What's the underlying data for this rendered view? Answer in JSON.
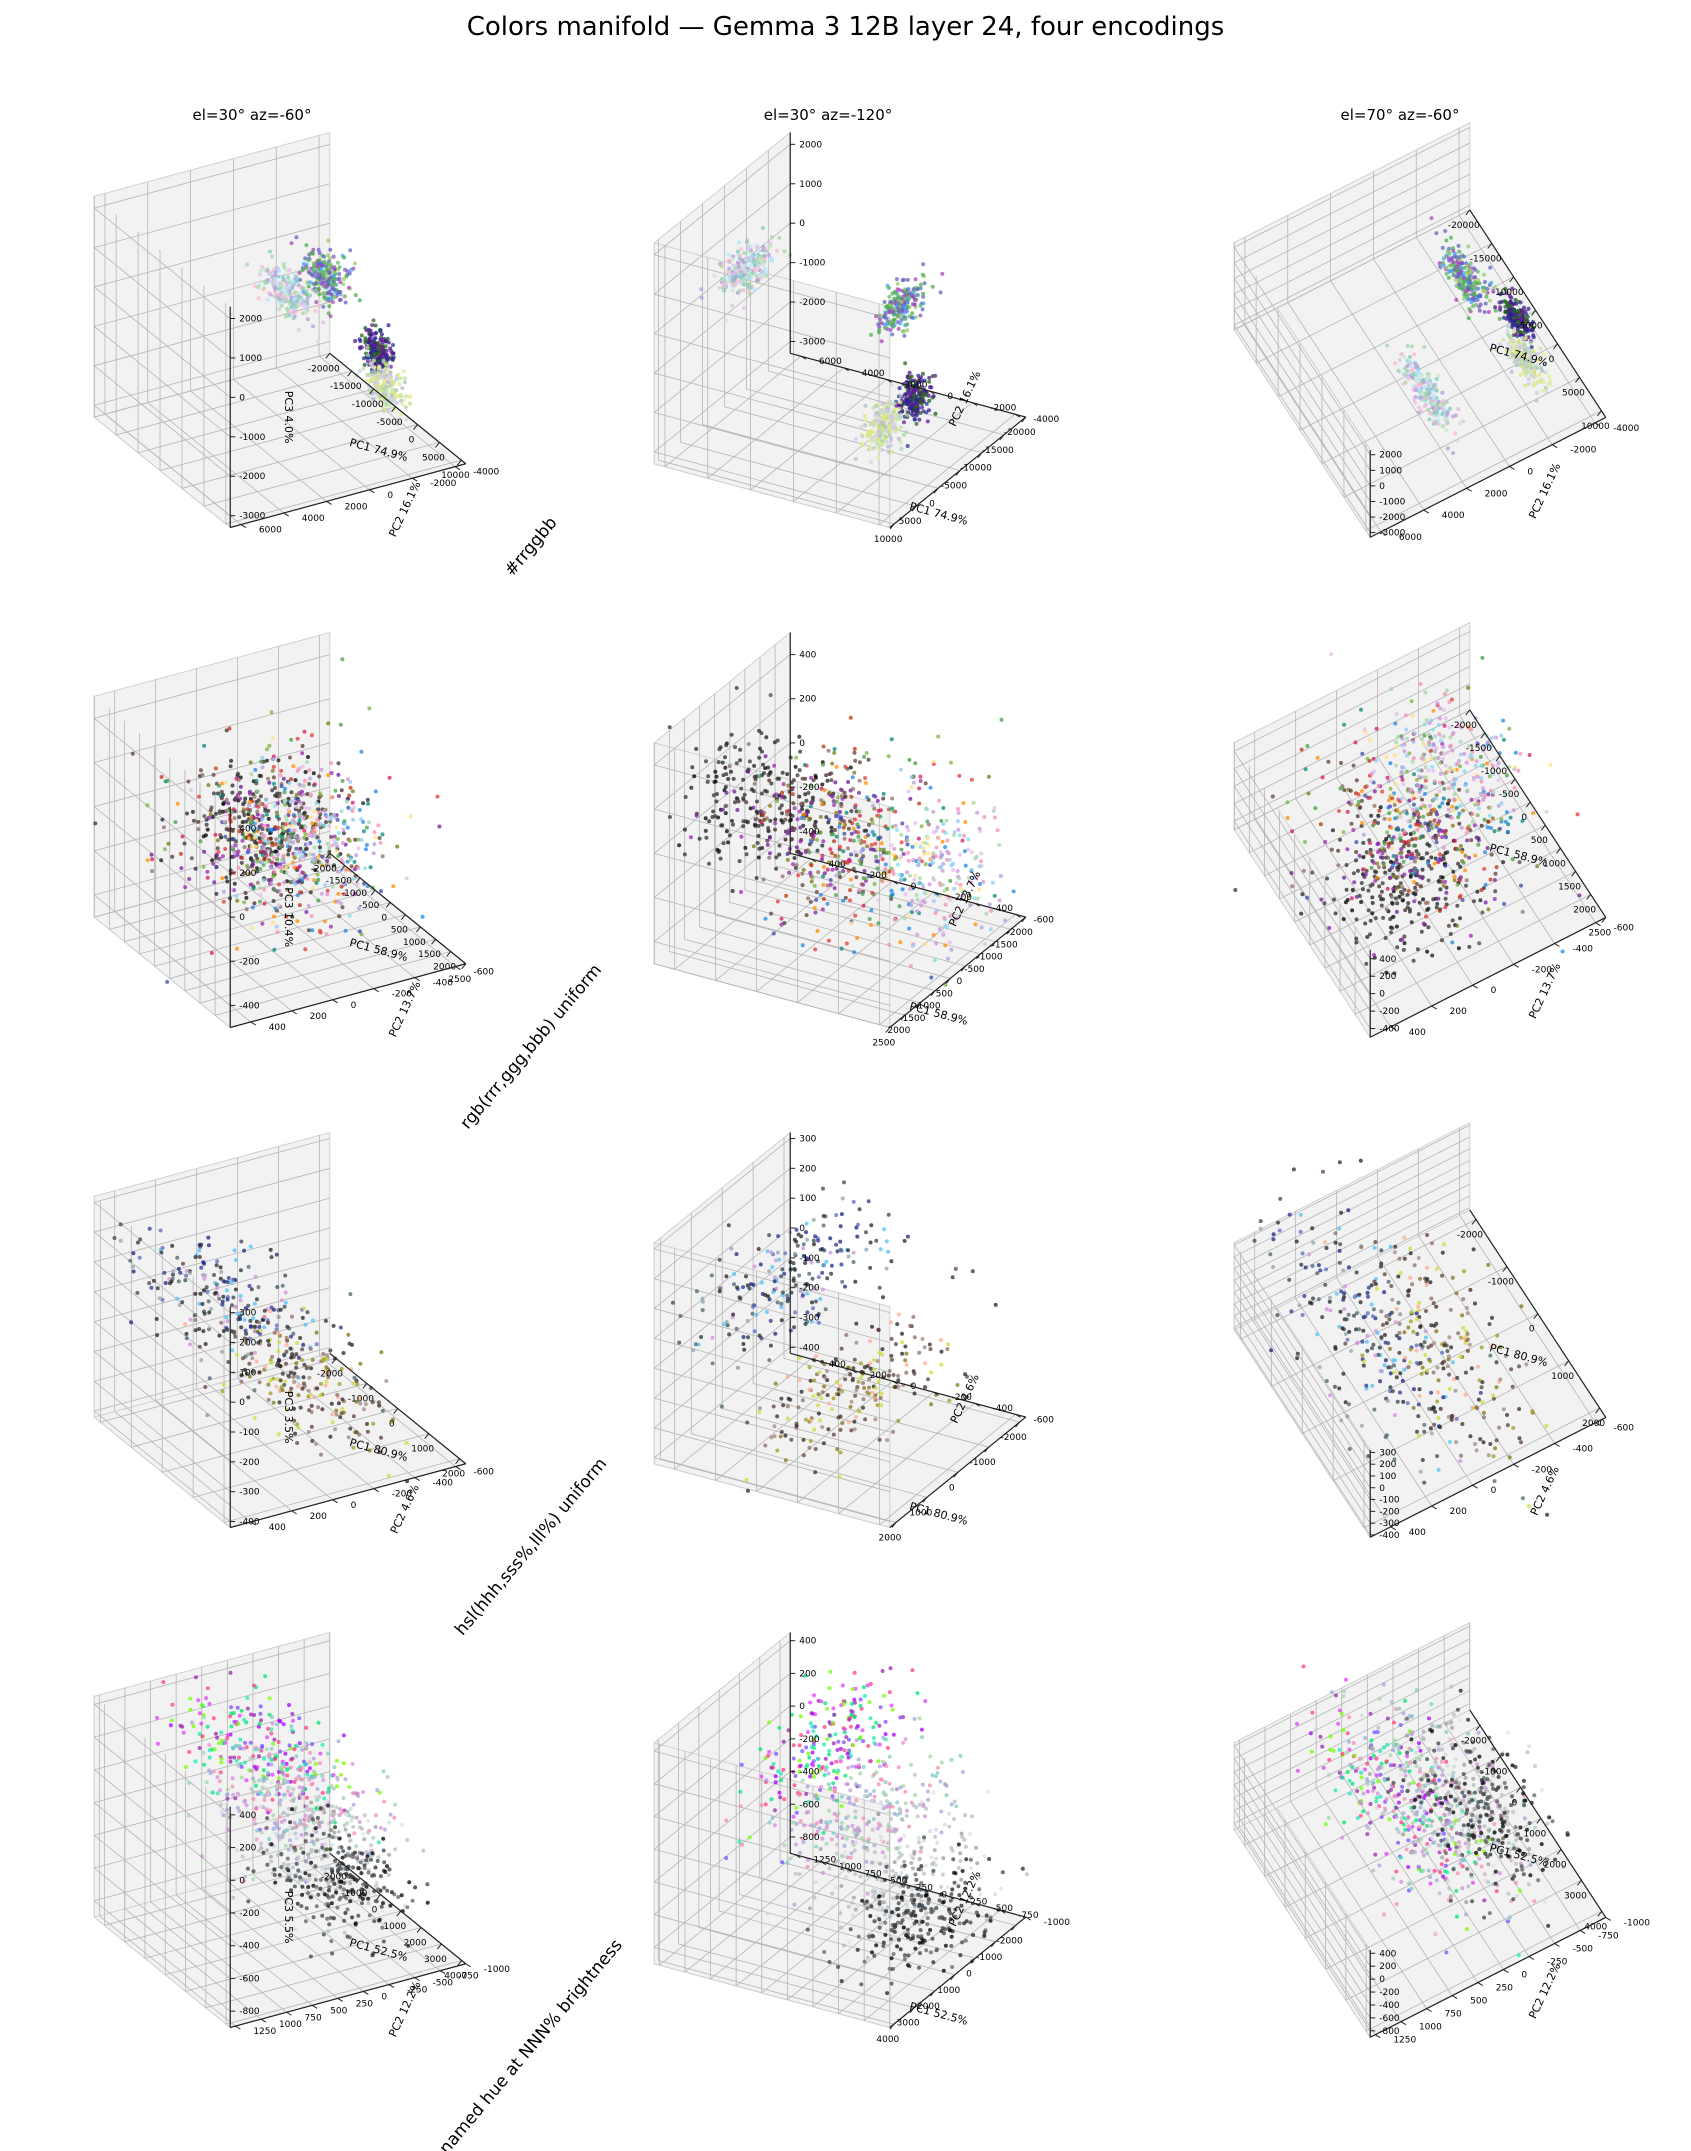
{
  "suptitle": "Colors manifold — Gemma 3 12B layer 24, four encodings",
  "view_titles": [
    "el=30° az=-60°",
    "el=30° az=-120°",
    "el=70° az=-60°"
  ],
  "chart_data": [
    {
      "type": "scatter",
      "row_label": "#rrggbb",
      "x_label": "PC1 74.9%",
      "y_label": "PC2 16.1%",
      "z_label": "PC3 4.0%",
      "x_ticks": [
        -20000,
        -15000,
        -10000,
        -5000,
        0,
        5000,
        10000
      ],
      "y_ticks": [
        -4000,
        -2000,
        0,
        2000,
        4000,
        6000
      ],
      "z_ticks": [
        -3000,
        -2000,
        -1000,
        0,
        1000,
        2000
      ],
      "xlim": [
        -20000,
        11000
      ],
      "ylim": [
        -4500,
        6500
      ],
      "zlim": [
        -3300,
        2300
      ],
      "clusters": [
        {
          "center": [
            7000,
            3000,
            1800
          ],
          "spread": [
            2500,
            300,
            250
          ],
          "elong": [
            1,
            0.3,
            0.4
          ],
          "palette": [
            "#c8e6c9",
            "#b3e5fc",
            "#e1bee7",
            "#a5d6a7",
            "#f8bbd0",
            "#b39ddb",
            "#80cbc4"
          ]
        },
        {
          "center": [
            -6000,
            -1500,
            300
          ],
          "spread": [
            2200,
            250,
            250
          ],
          "elong": [
            1,
            -0.3,
            0.6
          ],
          "palette": [
            "#7e57c2",
            "#66bb6a",
            "#5c6bc0",
            "#9ccc65",
            "#ab47bc",
            "#42a5f5",
            "#4caf50"
          ]
        },
        {
          "center": [
            -2000,
            -3000,
            -1400
          ],
          "spread": [
            1400,
            200,
            250
          ],
          "elong": [
            1,
            0.25,
            0.5
          ],
          "palette": [
            "#311b92",
            "#4a148c",
            "#1b5e20",
            "#33691e",
            "#6a1b9a",
            "#283593"
          ]
        },
        {
          "center": [
            2500,
            -2500,
            -1800
          ],
          "spread": [
            1800,
            250,
            250
          ],
          "elong": [
            1,
            0.2,
            0.6
          ],
          "palette": [
            "#dce775",
            "#c5e1a5",
            "#d1c4e9",
            "#b0bec5",
            "#e6ee9c",
            "#cfd8dc",
            "#a5d6a7"
          ]
        }
      ]
    },
    {
      "type": "scatter",
      "row_label": "rgb(rrr,ggg,bbb) uniform",
      "x_label": "PC1 58.9%",
      "y_label": "PC2 13.7%",
      "z_label": "PC3 10.4%",
      "x_ticks": [
        -2000,
        -1500,
        -1000,
        -500,
        0,
        500,
        1000,
        1500,
        2000,
        2500
      ],
      "y_ticks": [
        -600,
        -400,
        -200,
        0,
        200,
        400
      ],
      "z_ticks": [
        -400,
        -200,
        0,
        200,
        400
      ],
      "xlim": [
        -2000,
        2500
      ],
      "ylim": [
        -650,
        500
      ],
      "zlim": [
        -500,
        500
      ],
      "clusters": [
        {
          "center": [
            1200,
            150,
            180
          ],
          "spread": [
            600,
            180,
            120
          ],
          "elong": [
            0,
            0,
            0
          ],
          "palette": [
            "#000000",
            "#1a1a1a",
            "#2e2e2e",
            "#333333",
            "#3b2f2f",
            "#222831"
          ]
        },
        {
          "center": [
            400,
            0,
            30
          ],
          "spread": [
            800,
            200,
            160
          ],
          "elong": [
            0,
            0,
            0
          ],
          "palette": [
            "#7b1fa2",
            "#8d6e63",
            "#5d4037",
            "#6a1b9a",
            "#4e342e",
            "#9c27b0",
            "#827717",
            "#bf360c"
          ]
        },
        {
          "center": [
            -200,
            -150,
            -120
          ],
          "spread": [
            800,
            200,
            180
          ],
          "elong": [
            0,
            0,
            0
          ],
          "palette": [
            "#3949ab",
            "#43a047",
            "#ff8f00",
            "#00897b",
            "#e53935",
            "#1e88e5",
            "#7cb342",
            "#d81b60"
          ]
        },
        {
          "center": [
            -900,
            -350,
            -250
          ],
          "spread": [
            600,
            150,
            160
          ],
          "elong": [
            0,
            0,
            0
          ],
          "palette": [
            "#f48fb1",
            "#ce93d8",
            "#a5d6a7",
            "#90caf9",
            "#ffe082",
            "#b39ddb",
            "#80deea",
            "#e1bee7"
          ]
        }
      ]
    },
    {
      "type": "scatter",
      "row_label": "hsl(hhh,sss%,lll%) uniform",
      "x_label": "PC1 80.9%",
      "y_label": "PC2 4.6%",
      "z_label": "PC3 3.5%",
      "x_ticks": [
        -2000,
        -1000,
        0,
        1000,
        2000
      ],
      "y_ticks": [
        -600,
        -400,
        -200,
        0,
        200,
        400
      ],
      "z_ticks": [
        -400,
        -300,
        -200,
        -100,
        0,
        100,
        200,
        300
      ],
      "xlim": [
        -2200,
        2200
      ],
      "ylim": [
        -650,
        500
      ],
      "zlim": [
        -420,
        320
      ],
      "clusters": [
        {
          "center": [
            0,
            150,
            80
          ],
          "spread": [
            1300,
            140,
            50
          ],
          "elong": [
            0,
            0,
            0
          ],
          "palette": [
            "#263238",
            "#37474f",
            "#1a237e",
            "#4a6572",
            "#212121",
            "#283593",
            "#90a4ae",
            "#5c6bc0",
            "#ce93d8",
            "#4fc3f7"
          ]
        },
        {
          "center": [
            0,
            -150,
            -220
          ],
          "spread": [
            1300,
            140,
            50
          ],
          "elong": [
            0,
            0,
            0
          ],
          "palette": [
            "#3e2723",
            "#5d4037",
            "#827717",
            "#9e9d24",
            "#212121",
            "#8d6e63",
            "#cddc39",
            "#a1887f",
            "#ffab91"
          ]
        }
      ]
    },
    {
      "type": "scatter",
      "row_label": "named hue at NNN% brightness",
      "x_label": "PC1 52.5%",
      "y_label": "PC2 12.2%",
      "z_label": "PC3 5.5%",
      "x_ticks": [
        -2000,
        -1000,
        0,
        1000,
        2000,
        3000,
        4000
      ],
      "y_ticks": [
        -1000,
        -750,
        -500,
        -250,
        0,
        250,
        500,
        750,
        1000,
        1250
      ],
      "z_ticks": [
        -800,
        -600,
        -400,
        -200,
        0,
        200,
        400
      ],
      "xlim": [
        -2500,
        4200
      ],
      "ylim": [
        -1000,
        1300
      ],
      "zlim": [
        -900,
        450
      ],
      "clusters": [
        {
          "center": [
            800,
            300,
            250
          ],
          "spread": [
            1500,
            250,
            120
          ],
          "elong": [
            0,
            0,
            0
          ],
          "palette": [
            "#e040fb",
            "#7c4dff",
            "#00e676",
            "#ff4081",
            "#76ff03",
            "#aa00ff",
            "#1de9b6",
            "#9c27b0"
          ]
        },
        {
          "center": [
            500,
            0,
            -100
          ],
          "spread": [
            1500,
            300,
            150
          ],
          "elong": [
            0,
            0,
            0
          ],
          "palette": [
            "#ce93d8",
            "#b39ddb",
            "#a5d6a7",
            "#80cbc4",
            "#f48fb1",
            "#9fa8da"
          ]
        },
        {
          "center": [
            300,
            -300,
            -450
          ],
          "spread": [
            1400,
            300,
            160
          ],
          "elong": [
            0,
            0,
            0
          ],
          "palette": [
            "#bdbdbd",
            "#9e9e9e",
            "#e0e0e0",
            "#cfd8dc",
            "#b0bec5"
          ]
        },
        {
          "center": [
            200,
            -500,
            -700
          ],
          "spread": [
            1200,
            250,
            120
          ],
          "elong": [
            0,
            0,
            0
          ],
          "palette": [
            "#212121",
            "#424242",
            "#000000",
            "#616161",
            "#37474f"
          ]
        }
      ]
    }
  ],
  "colors": {
    "pane": "#f2f2f2",
    "grid": "#b5b5b5",
    "axis": "#222222"
  }
}
